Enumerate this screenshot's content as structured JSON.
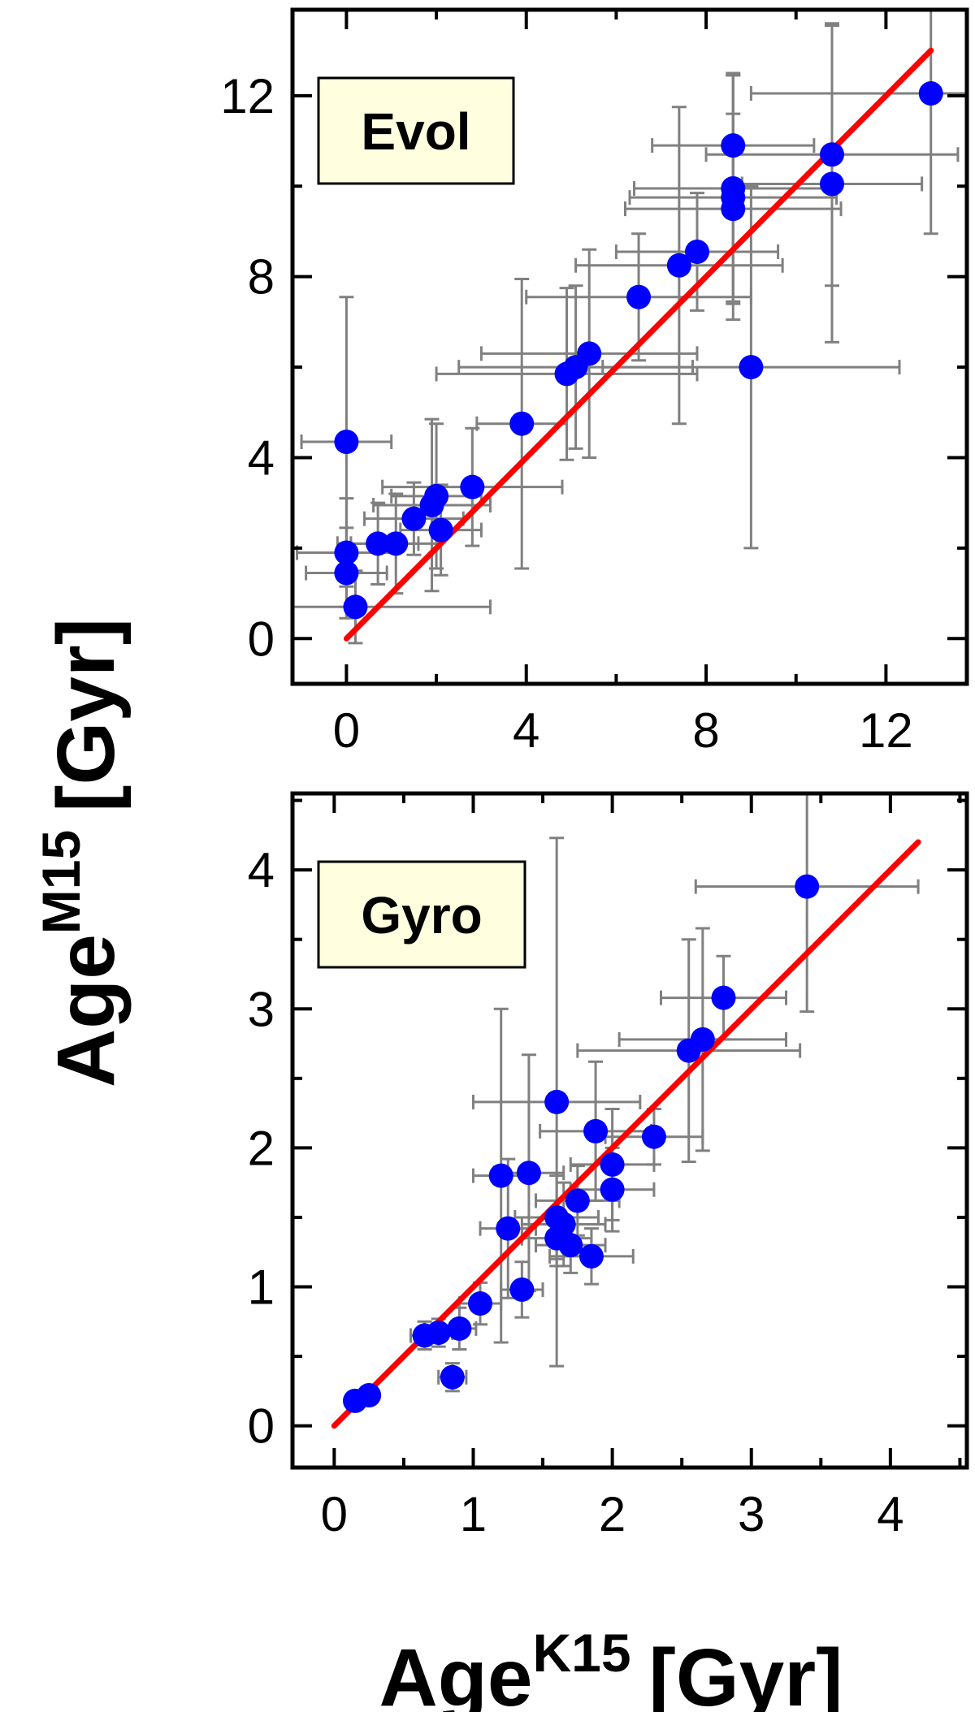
{
  "colors": {
    "points": "#0000ff",
    "error_bars": "#808080",
    "fit_line": "#ff0000",
    "label_box_fill": "#ffffe0",
    "frame": "#000000"
  },
  "figure": {
    "ylabel_main": "Age",
    "ylabel_sup": "M15",
    "ylabel_unit": "[Gyr]",
    "xlabel_main": "Age",
    "xlabel_sup": "K15",
    "xlabel_unit": "[Gyr]"
  },
  "chart_data": [
    {
      "type": "scatter",
      "title": "Evol",
      "xlim": [
        -1.2,
        13.8
      ],
      "ylim": [
        -1,
        13.9
      ],
      "xticks": [
        0,
        4,
        8,
        12
      ],
      "yticks": [
        0,
        4,
        8,
        12
      ],
      "xtick_labels": [
        "0",
        "4",
        "8",
        "12"
      ],
      "ytick_labels": [
        "0",
        "4",
        "8",
        "12"
      ],
      "grid": false,
      "fit_line": {
        "x": [
          0,
          13
        ],
        "y": [
          0,
          13
        ]
      },
      "points": [
        {
          "x": 0.0,
          "y": 4.35,
          "xerr": 1.0,
          "yerr": 3.2
        },
        {
          "x": 0.0,
          "y": 1.9,
          "xerr": 1.1,
          "yerr": 1.2
        },
        {
          "x": 0.0,
          "y": 1.45,
          "xerr": 0.9,
          "yerr": 1.0
        },
        {
          "x": 0.2,
          "y": 0.7,
          "xerr": 3.0,
          "yerr": 0.8
        },
        {
          "x": 0.7,
          "y": 2.1,
          "xerr": 0.9,
          "yerr": 0.9
        },
        {
          "x": 1.1,
          "y": 2.1,
          "xerr": 1.0,
          "yerr": 1.1
        },
        {
          "x": 1.5,
          "y": 2.65,
          "xerr": 1.1,
          "yerr": 0.8
        },
        {
          "x": 1.9,
          "y": 2.95,
          "xerr": 1.3,
          "yerr": 1.9
        },
        {
          "x": 2.0,
          "y": 3.15,
          "xerr": 1.0,
          "yerr": 1.6
        },
        {
          "x": 2.1,
          "y": 2.4,
          "xerr": 0.9,
          "yerr": 1.0
        },
        {
          "x": 2.8,
          "y": 3.35,
          "xerr": 2.0,
          "yerr": 1.3
        },
        {
          "x": 3.9,
          "y": 4.75,
          "xerr": 1.0,
          "yerr": 3.2
        },
        {
          "x": 4.9,
          "y": 5.85,
          "xerr": 2.9,
          "yerr": 1.9
        },
        {
          "x": 5.1,
          "y": 6.0,
          "xerr": 2.6,
          "yerr": 1.8
        },
        {
          "x": 5.4,
          "y": 6.3,
          "xerr": 2.4,
          "yerr": 2.3
        },
        {
          "x": 6.5,
          "y": 7.55,
          "xerr": 2.5,
          "yerr": 1.4
        },
        {
          "x": 7.4,
          "y": 8.25,
          "xerr": 2.3,
          "yerr": 3.5
        },
        {
          "x": 7.8,
          "y": 8.55,
          "xerr": 1.8,
          "yerr": 1.3
        },
        {
          "x": 8.6,
          "y": 10.9,
          "xerr": 1.8,
          "yerr": 1.6
        },
        {
          "x": 8.6,
          "y": 9.95,
          "xerr": 2.2,
          "yerr": 2.5
        },
        {
          "x": 8.6,
          "y": 9.75,
          "xerr": 2.3,
          "yerr": 2.7
        },
        {
          "x": 8.6,
          "y": 9.5,
          "xerr": 2.4,
          "yerr": 2.1
        },
        {
          "x": 9.0,
          "y": 6.0,
          "xerr": 3.3,
          "yerr": 4.0
        },
        {
          "x": 10.8,
          "y": 10.7,
          "xerr": 2.8,
          "yerr": 2.9
        },
        {
          "x": 10.8,
          "y": 10.05,
          "xerr": 2.0,
          "yerr": 3.5
        },
        {
          "x": 13.0,
          "y": 12.05,
          "xerr": 4.0,
          "yerr": 3.1
        }
      ]
    },
    {
      "type": "scatter",
      "title": "Gyro",
      "xlim": [
        -0.3,
        4.55
      ],
      "ylim": [
        -0.3,
        4.55
      ],
      "xticks": [
        0,
        1,
        2,
        3,
        4
      ],
      "yticks": [
        0,
        1,
        2,
        3,
        4
      ],
      "xtick_labels": [
        "0",
        "1",
        "2",
        "3",
        "4"
      ],
      "ytick_labels": [
        "0",
        "1",
        "2",
        "3",
        "4"
      ],
      "grid": false,
      "fit_line": {
        "x": [
          0,
          4.2
        ],
        "y": [
          0,
          4.2
        ]
      },
      "points": [
        {
          "x": 0.15,
          "y": 0.18,
          "xerr": 0.05,
          "yerr": 0.04
        },
        {
          "x": 0.25,
          "y": 0.22,
          "xerr": 0.05,
          "yerr": 0.04
        },
        {
          "x": 0.65,
          "y": 0.65,
          "xerr": 0.1,
          "yerr": 0.1
        },
        {
          "x": 0.75,
          "y": 0.67,
          "xerr": 0.1,
          "yerr": 0.1
        },
        {
          "x": 0.85,
          "y": 0.35,
          "xerr": 0.1,
          "yerr": 0.1
        },
        {
          "x": 0.9,
          "y": 0.7,
          "xerr": 0.12,
          "yerr": 0.15
        },
        {
          "x": 1.05,
          "y": 0.88,
          "xerr": 0.15,
          "yerr": 0.15
        },
        {
          "x": 1.35,
          "y": 0.98,
          "xerr": 0.15,
          "yerr": 0.2
        },
        {
          "x": 1.2,
          "y": 1.8,
          "xerr": 0.2,
          "yerr": 1.2
        },
        {
          "x": 1.25,
          "y": 1.42,
          "xerr": 0.2,
          "yerr": 0.5
        },
        {
          "x": 1.4,
          "y": 1.82,
          "xerr": 0.25,
          "yerr": 0.85
        },
        {
          "x": 1.6,
          "y": 1.5,
          "xerr": 0.3,
          "yerr": 0.3
        },
        {
          "x": 1.6,
          "y": 1.35,
          "xerr": 0.25,
          "yerr": 0.2
        },
        {
          "x": 1.65,
          "y": 1.45,
          "xerr": 0.3,
          "yerr": 0.3
        },
        {
          "x": 1.7,
          "y": 1.3,
          "xerr": 0.25,
          "yerr": 0.2
        },
        {
          "x": 1.75,
          "y": 1.62,
          "xerr": 0.3,
          "yerr": 0.25
        },
        {
          "x": 1.6,
          "y": 2.33,
          "xerr": 0.6,
          "yerr": 1.9
        },
        {
          "x": 1.85,
          "y": 1.22,
          "xerr": 0.3,
          "yerr": 0.2
        },
        {
          "x": 1.88,
          "y": 2.12,
          "xerr": 0.4,
          "yerr": 0.5
        },
        {
          "x": 2.0,
          "y": 1.88,
          "xerr": 0.3,
          "yerr": 0.4
        },
        {
          "x": 2.0,
          "y": 1.7,
          "xerr": 0.3,
          "yerr": 0.3
        },
        {
          "x": 2.3,
          "y": 2.08,
          "xerr": 0.35,
          "yerr": 0.2
        },
        {
          "x": 2.55,
          "y": 2.7,
          "xerr": 0.8,
          "yerr": 0.8
        },
        {
          "x": 2.65,
          "y": 2.78,
          "xerr": 0.6,
          "yerr": 0.8
        },
        {
          "x": 2.8,
          "y": 3.08,
          "xerr": 0.45,
          "yerr": 0.3
        },
        {
          "x": 3.4,
          "y": 3.88,
          "xerr": 0.8,
          "yerr": 0.9
        }
      ]
    }
  ]
}
